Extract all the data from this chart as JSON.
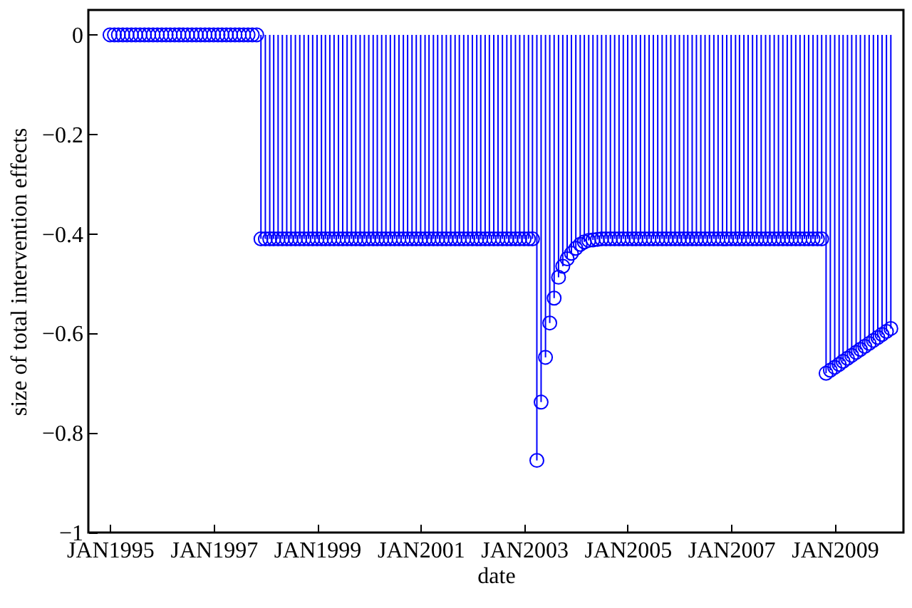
{
  "chart_data": {
    "type": "lollipop",
    "xlabel": "date",
    "ylabel": "size of total intervention effects",
    "marker": "circle",
    "xlim": [
      "1994-08",
      "2010-05"
    ],
    "ylim": [
      -1,
      0.05
    ],
    "xticks": [
      {
        "value": "1995-01",
        "label": "JAN1995"
      },
      {
        "value": "1997-01",
        "label": "JAN1997"
      },
      {
        "value": "1999-01",
        "label": "JAN1999"
      },
      {
        "value": "2001-01",
        "label": "JAN2001"
      },
      {
        "value": "2003-01",
        "label": "JAN2003"
      },
      {
        "value": "2005-01",
        "label": "JAN2005"
      },
      {
        "value": "2007-01",
        "label": "JAN2007"
      },
      {
        "value": "2009-01",
        "label": "JAN2009"
      }
    ],
    "yticks": [
      -1,
      -0.8,
      -0.6,
      -0.4,
      -0.2,
      0
    ],
    "x": [
      "1995-01",
      "1995-02",
      "1995-03",
      "1995-04",
      "1995-05",
      "1995-06",
      "1995-07",
      "1995-08",
      "1995-09",
      "1995-10",
      "1995-11",
      "1995-12",
      "1996-01",
      "1996-02",
      "1996-03",
      "1996-04",
      "1996-05",
      "1996-06",
      "1996-07",
      "1996-08",
      "1996-09",
      "1996-10",
      "1996-11",
      "1996-12",
      "1997-01",
      "1997-02",
      "1997-03",
      "1997-04",
      "1997-05",
      "1997-06",
      "1997-07",
      "1997-08",
      "1997-09",
      "1997-10",
      "1997-11",
      "1997-12",
      "1998-01",
      "1998-02",
      "1998-03",
      "1998-04",
      "1998-05",
      "1998-06",
      "1998-07",
      "1998-08",
      "1998-09",
      "1998-10",
      "1998-11",
      "1998-12",
      "1999-01",
      "1999-02",
      "1999-03",
      "1999-04",
      "1999-05",
      "1999-06",
      "1999-07",
      "1999-08",
      "1999-09",
      "1999-10",
      "1999-11",
      "1999-12",
      "2000-01",
      "2000-02",
      "2000-03",
      "2000-04",
      "2000-05",
      "2000-06",
      "2000-07",
      "2000-08",
      "2000-09",
      "2000-10",
      "2000-11",
      "2000-12",
      "2001-01",
      "2001-02",
      "2001-03",
      "2001-04",
      "2001-05",
      "2001-06",
      "2001-07",
      "2001-08",
      "2001-09",
      "2001-10",
      "2001-11",
      "2001-12",
      "2002-01",
      "2002-02",
      "2002-03",
      "2002-04",
      "2002-05",
      "2002-06",
      "2002-07",
      "2002-08",
      "2002-09",
      "2002-10",
      "2002-11",
      "2002-12",
      "2003-01",
      "2003-02",
      "2003-03",
      "2003-04",
      "2003-05",
      "2003-06",
      "2003-07",
      "2003-08",
      "2003-09",
      "2003-10",
      "2003-11",
      "2003-12",
      "2004-01",
      "2004-02",
      "2004-03",
      "2004-04",
      "2004-05",
      "2004-06",
      "2004-07",
      "2004-08",
      "2004-09",
      "2004-10",
      "2004-11",
      "2004-12",
      "2005-01",
      "2005-02",
      "2005-03",
      "2005-04",
      "2005-05",
      "2005-06",
      "2005-07",
      "2005-08",
      "2005-09",
      "2005-10",
      "2005-11",
      "2005-12",
      "2006-01",
      "2006-02",
      "2006-03",
      "2006-04",
      "2006-05",
      "2006-06",
      "2006-07",
      "2006-08",
      "2006-09",
      "2006-10",
      "2006-11",
      "2006-12",
      "2007-01",
      "2007-02",
      "2007-03",
      "2007-04",
      "2007-05",
      "2007-06",
      "2007-07",
      "2007-08",
      "2007-09",
      "2007-10",
      "2007-11",
      "2007-12",
      "2008-01",
      "2008-02",
      "2008-03",
      "2008-04",
      "2008-05",
      "2008-06",
      "2008-07",
      "2008-08",
      "2008-09",
      "2008-10",
      "2008-11",
      "2008-12",
      "2009-01",
      "2009-02",
      "2009-03",
      "2009-04",
      "2009-05",
      "2009-06",
      "2009-07",
      "2009-08",
      "2009-09",
      "2009-10",
      "2009-11",
      "2009-12",
      "2010-01",
      "2010-02"
    ],
    "series": [
      {
        "color": "#0000ff",
        "values": [
          0,
          0,
          0,
          0,
          0,
          0,
          0,
          0,
          0,
          0,
          0,
          0,
          0,
          0,
          0,
          0,
          0,
          0,
          0,
          0,
          0,
          0,
          0,
          0,
          0,
          0,
          0,
          0,
          0,
          0,
          0,
          0,
          0,
          0,
          0,
          -0.41,
          -0.41,
          -0.41,
          -0.41,
          -0.41,
          -0.41,
          -0.41,
          -0.41,
          -0.41,
          -0.41,
          -0.41,
          -0.41,
          -0.41,
          -0.41,
          -0.41,
          -0.41,
          -0.41,
          -0.41,
          -0.41,
          -0.41,
          -0.41,
          -0.41,
          -0.41,
          -0.41,
          -0.41,
          -0.41,
          -0.41,
          -0.41,
          -0.41,
          -0.41,
          -0.41,
          -0.41,
          -0.41,
          -0.41,
          -0.41,
          -0.41,
          -0.41,
          -0.41,
          -0.41,
          -0.41,
          -0.41,
          -0.41,
          -0.41,
          -0.41,
          -0.41,
          -0.41,
          -0.41,
          -0.41,
          -0.41,
          -0.41,
          -0.41,
          -0.41,
          -0.41,
          -0.41,
          -0.41,
          -0.41,
          -0.41,
          -0.41,
          -0.41,
          -0.41,
          -0.41,
          -0.41,
          -0.41,
          -0.41,
          -0.855,
          -0.738,
          -0.648,
          -0.579,
          -0.529,
          -0.487,
          -0.465,
          -0.45,
          -0.439,
          -0.429,
          -0.421,
          -0.416,
          -0.413,
          -0.412,
          -0.411,
          -0.41,
          -0.41,
          -0.41,
          -0.41,
          -0.41,
          -0.41,
          -0.41,
          -0.41,
          -0.41,
          -0.41,
          -0.41,
          -0.41,
          -0.41,
          -0.41,
          -0.41,
          -0.41,
          -0.41,
          -0.41,
          -0.41,
          -0.41,
          -0.41,
          -0.41,
          -0.41,
          -0.41,
          -0.41,
          -0.41,
          -0.41,
          -0.41,
          -0.41,
          -0.41,
          -0.41,
          -0.41,
          -0.41,
          -0.41,
          -0.41,
          -0.41,
          -0.41,
          -0.41,
          -0.41,
          -0.41,
          -0.41,
          -0.41,
          -0.41,
          -0.41,
          -0.41,
          -0.41,
          -0.41,
          -0.41,
          -0.41,
          -0.41,
          -0.41,
          -0.41,
          -0.68,
          -0.674,
          -0.668,
          -0.662,
          -0.656,
          -0.65,
          -0.644,
          -0.638,
          -0.632,
          -0.626,
          -0.62,
          -0.614,
          -0.608,
          -0.602,
          -0.596,
          -0.59
        ]
      }
    ]
  }
}
